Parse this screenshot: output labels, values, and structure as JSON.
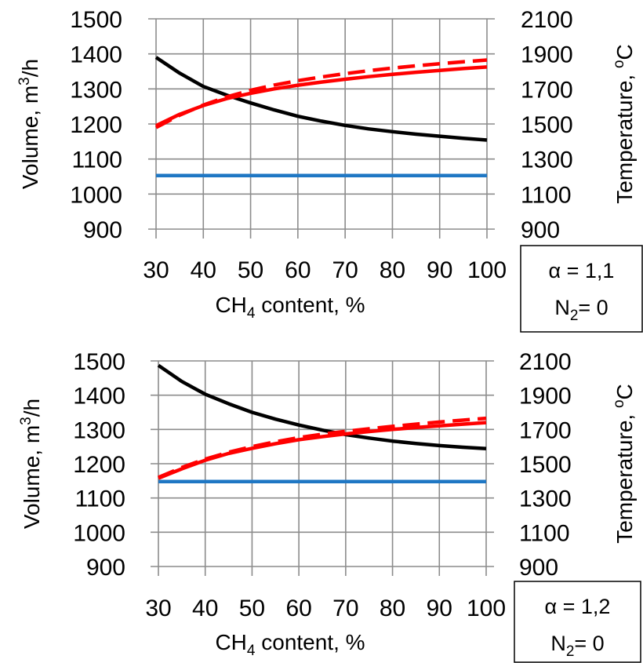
{
  "chart_data": [
    {
      "type": "line",
      "xlabel": {
        "prefix": "CH",
        "sub": "4",
        "suffix": " content, %"
      },
      "ylabel": {
        "prefix": "Volume, m",
        "sup": "3",
        "suffix": "/h"
      },
      "y2label": {
        "prefix": "Temperature, ",
        "sup": "o",
        "suffix": "C"
      },
      "xlim": [
        30,
        100
      ],
      "ylim": [
        900,
        1500
      ],
      "y2lim": [
        900,
        2100
      ],
      "xticks": [
        "30",
        "40",
        "50",
        "60",
        "70",
        "80",
        "90",
        "100"
      ],
      "yticks": [
        "900",
        "1000",
        "1100",
        "1200",
        "1300",
        "1400",
        "1500"
      ],
      "y2ticks": [
        "900",
        "1100",
        "1300",
        "1500",
        "1700",
        "1900",
        "2100"
      ],
      "grid": true,
      "legend": "none",
      "params": {
        "alpha": "α = 1,1",
        "n2": {
          "prefix": "N",
          "sub": "2",
          "suffix": "= 0"
        }
      },
      "x": [
        30,
        35,
        40,
        45,
        50,
        55,
        60,
        65,
        70,
        75,
        80,
        85,
        90,
        95,
        100
      ],
      "series": [
        {
          "axis": "left",
          "color": "#000000",
          "dash": "solid",
          "values": [
            1390,
            1345,
            1307,
            1282,
            1260,
            1240,
            1222,
            1208,
            1196,
            1186,
            1178,
            1171,
            1165,
            1159,
            1154
          ]
        },
        {
          "axis": "left",
          "color": "#1f77c4",
          "dash": "solid",
          "values": [
            1053,
            1053,
            1053,
            1053,
            1053,
            1053,
            1053,
            1053,
            1053,
            1053,
            1053,
            1053,
            1053,
            1053,
            1053
          ]
        },
        {
          "axis": "right",
          "color": "#ff0000",
          "dash": "solid",
          "values": [
            1490,
            1555,
            1605,
            1645,
            1675,
            1700,
            1721,
            1739,
            1755,
            1770,
            1783,
            1795,
            1806,
            1816,
            1825
          ]
        },
        {
          "axis": "right",
          "color": "#ff0000",
          "dash": "dashed",
          "values": [
            1480,
            1550,
            1608,
            1655,
            1692,
            1722,
            1747,
            1768,
            1787,
            1804,
            1819,
            1832,
            1844,
            1855,
            1865
          ]
        }
      ]
    },
    {
      "type": "line",
      "xlabel": {
        "prefix": "CH",
        "sub": "4",
        "suffix": " content, %"
      },
      "ylabel": {
        "prefix": "Volume, m",
        "sup": "3",
        "suffix": "/h"
      },
      "y2label": {
        "prefix": "Temperature, ",
        "sup": "o",
        "suffix": "C"
      },
      "xlim": [
        30,
        100
      ],
      "ylim": [
        900,
        1500
      ],
      "y2lim": [
        900,
        2100
      ],
      "xticks": [
        "30",
        "40",
        "50",
        "60",
        "70",
        "80",
        "90",
        "100"
      ],
      "yticks": [
        "900",
        "1000",
        "1100",
        "1200",
        "1300",
        "1400",
        "1500"
      ],
      "y2ticks": [
        "900",
        "1100",
        "1300",
        "1500",
        "1700",
        "1900",
        "2100"
      ],
      "grid": true,
      "legend": "none",
      "params": {
        "alpha": "α = 1,2",
        "n2": {
          "prefix": "N",
          "sub": "2",
          "suffix": "= 0"
        }
      },
      "x": [
        30,
        35,
        40,
        45,
        50,
        55,
        60,
        65,
        70,
        75,
        80,
        85,
        90,
        95,
        100
      ],
      "series": [
        {
          "axis": "left",
          "color": "#000000",
          "dash": "solid",
          "values": [
            1487,
            1440,
            1403,
            1375,
            1350,
            1330,
            1313,
            1298,
            1285,
            1275,
            1266,
            1259,
            1253,
            1248,
            1244
          ]
        },
        {
          "axis": "left",
          "color": "#1f77c4",
          "dash": "solid",
          "values": [
            1148,
            1148,
            1148,
            1148,
            1148,
            1148,
            1148,
            1148,
            1148,
            1148,
            1148,
            1148,
            1148,
            1148,
            1148
          ]
        },
        {
          "axis": "right",
          "color": "#ff0000",
          "dash": "solid",
          "values": [
            1415,
            1470,
            1520,
            1560,
            1590,
            1617,
            1640,
            1658,
            1674,
            1688,
            1700,
            1711,
            1721,
            1731,
            1740
          ]
        },
        {
          "axis": "right",
          "color": "#ff0000",
          "dash": "dashed",
          "values": [
            1420,
            1478,
            1527,
            1567,
            1600,
            1628,
            1652,
            1672,
            1689,
            1704,
            1718,
            1731,
            1743,
            1754,
            1765
          ]
        }
      ]
    }
  ]
}
